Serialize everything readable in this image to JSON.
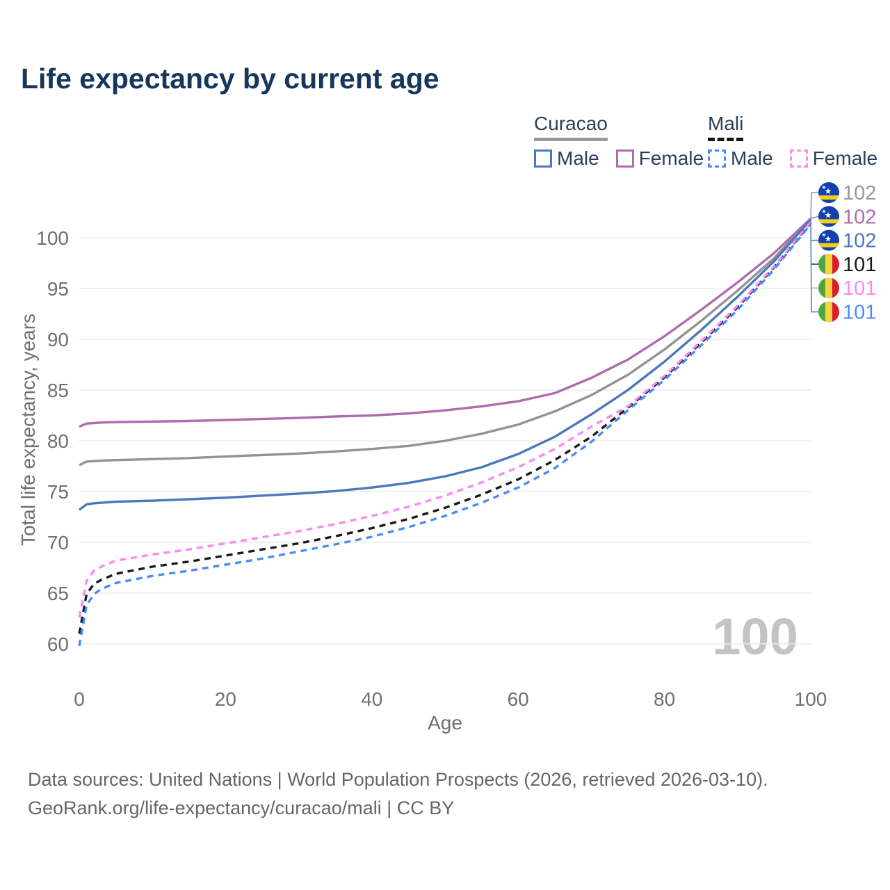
{
  "title": "Life expectancy by current age",
  "legend": {
    "curacao": {
      "name": "Curacao",
      "male": "Male",
      "female": "Female"
    },
    "mali": {
      "name": "Mali",
      "male": "Male",
      "female": "Female"
    }
  },
  "watermark": "100",
  "footer": {
    "line1": "Data sources: United Nations | World Population Prospects (2026, retrieved 2026-03-10).",
    "line2": "GeoRank.org/life-expectancy/curacao/mali | CC BY"
  },
  "colors": {
    "title": "#17365c",
    "legend_text": "#2a3f5c",
    "axis_text": "#6f6f6f",
    "grid": "#ebebeb",
    "watermark": "#c4c4c4",
    "footer_text": "#666666",
    "curacao_underline": "#999999",
    "mali_underline": "#141414",
    "curacao_male": "#4a78bb",
    "curacao_female": "#ad6cae",
    "curacao_both": "#929292",
    "mali_male": "#4a8cf7",
    "mali_female": "#fc88f2",
    "mali_both": "#1a1a1a",
    "flag_curacao_blue": "#1240b0",
    "flag_curacao_yellow": "#f5d20f",
    "flag_mali_green": "#4ca83c",
    "flag_mali_yellow": "#f4d33f",
    "flag_mali_red": "#d6202c"
  },
  "chart_data": {
    "type": "line",
    "title": "Life expectancy by current age",
    "xlabel": "Age",
    "ylabel": "Total life expectancy, years",
    "xlim": [
      0,
      100
    ],
    "ylim": [
      58.5,
      103
    ],
    "x_ticks": [
      0,
      20,
      40,
      60,
      80,
      100
    ],
    "y_ticks": [
      60,
      65,
      70,
      75,
      80,
      85,
      90,
      95,
      100
    ],
    "grid": "horizontal-only",
    "legend_position": "top-right",
    "watermark": "100",
    "x": [
      0,
      1,
      2,
      3,
      5,
      10,
      15,
      20,
      25,
      30,
      35,
      40,
      45,
      50,
      55,
      60,
      65,
      70,
      75,
      80,
      85,
      90,
      95,
      100
    ],
    "series": [
      {
        "name": "Curacao",
        "country": "Curacao",
        "group": "country-line",
        "line": "solid",
        "color_key": "curacao_both",
        "flag": "curacao",
        "end_label": "102",
        "values": [
          77.6,
          77.95,
          78.0,
          78.05,
          78.1,
          78.2,
          78.3,
          78.45,
          78.6,
          78.75,
          78.95,
          79.2,
          79.5,
          80.0,
          80.7,
          81.6,
          82.9,
          84.5,
          86.5,
          89.0,
          91.8,
          94.8,
          98.0,
          101.85
        ]
      },
      {
        "name": "Curacao Female",
        "country": "Curacao",
        "group": "female",
        "line": "solid",
        "color_key": "curacao_female",
        "flag": "curacao",
        "end_label": "102",
        "values": [
          81.4,
          81.7,
          81.75,
          81.8,
          81.85,
          81.9,
          81.95,
          82.05,
          82.15,
          82.25,
          82.4,
          82.5,
          82.7,
          83.0,
          83.4,
          83.9,
          84.7,
          86.2,
          88.0,
          90.3,
          92.9,
          95.6,
          98.5,
          101.9
        ]
      },
      {
        "name": "Curacao Male",
        "country": "Curacao",
        "group": "male",
        "line": "solid",
        "color_key": "curacao_male",
        "flag": "curacao",
        "end_label": "102",
        "values": [
          73.2,
          73.75,
          73.85,
          73.9,
          74.0,
          74.1,
          74.25,
          74.4,
          74.6,
          74.8,
          75.05,
          75.4,
          75.85,
          76.5,
          77.4,
          78.7,
          80.4,
          82.6,
          85.0,
          87.8,
          90.9,
          94.2,
          97.7,
          101.8
        ]
      },
      {
        "name": "Mali",
        "country": "Mali",
        "group": "country-line",
        "line": "dashed",
        "color_key": "mali_both",
        "flag": "mali",
        "end_label": "101",
        "values": [
          61.0,
          64.9,
          65.9,
          66.3,
          66.9,
          67.6,
          68.1,
          68.7,
          69.3,
          69.9,
          70.6,
          71.4,
          72.3,
          73.4,
          74.7,
          76.2,
          78.1,
          80.4,
          83.25,
          86.25,
          89.65,
          93.15,
          97.1,
          101.45
        ]
      },
      {
        "name": "Mali Female",
        "country": "Mali",
        "group": "female",
        "line": "dashed",
        "color_key": "mali_female",
        "flag": "mali",
        "end_label": "101",
        "values": [
          62.6,
          66.2,
          67.2,
          67.6,
          68.2,
          68.8,
          69.3,
          69.9,
          70.5,
          71.1,
          71.8,
          72.6,
          73.5,
          74.6,
          75.9,
          77.4,
          79.2,
          81.4,
          83.4,
          86.4,
          89.8,
          93.3,
          97.2,
          101.55
        ]
      },
      {
        "name": "Mali Male",
        "country": "Mali",
        "group": "male",
        "line": "dashed",
        "color_key": "mali_male",
        "flag": "mali",
        "end_label": "101",
        "values": [
          59.8,
          63.8,
          64.9,
          65.4,
          66.0,
          66.7,
          67.2,
          67.8,
          68.4,
          69.1,
          69.8,
          70.55,
          71.5,
          72.6,
          73.9,
          75.4,
          77.3,
          79.9,
          83.0,
          86.0,
          89.4,
          92.9,
          96.9,
          101.35
        ]
      }
    ]
  }
}
